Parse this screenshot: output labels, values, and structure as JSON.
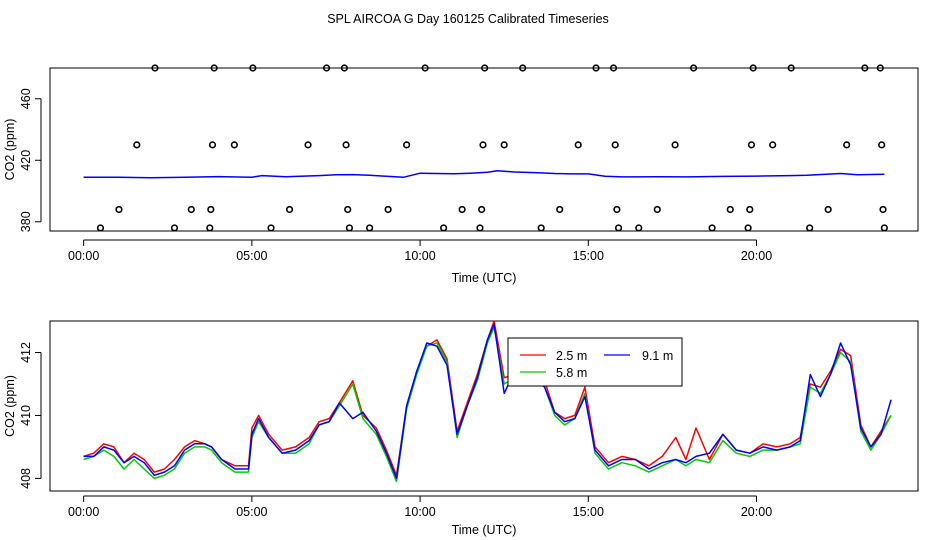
{
  "figure": {
    "title": "SPL AIRCOA G  Day 160125  Calibrated Timeseries"
  },
  "chart_data": [
    {
      "type": "scatter",
      "xlabel": "Time (UTC)",
      "ylabel": "CO2 (ppm)",
      "xlim": [
        -1,
        24.8
      ],
      "ylim": [
        374,
        480
      ],
      "x_ticks": [
        "00:00",
        "05:00",
        "10:00",
        "15:00",
        "20:00"
      ],
      "x_tick_values": [
        0,
        5,
        10,
        15,
        20
      ],
      "y_ticks": [
        "380",
        "420",
        "460"
      ],
      "y_tick_values": [
        380,
        420,
        460
      ],
      "calibration_points": [
        {
          "x": 0.5,
          "y": 376
        },
        {
          "x": 1.05,
          "y": 388
        },
        {
          "x": 1.58,
          "y": 430
        },
        {
          "x": 2.12,
          "y": 480
        },
        {
          "x": 2.7,
          "y": 376
        },
        {
          "x": 3.2,
          "y": 388
        },
        {
          "x": 3.75,
          "y": 376
        },
        {
          "x": 3.78,
          "y": 388
        },
        {
          "x": 3.83,
          "y": 430
        },
        {
          "x": 3.88,
          "y": 480
        },
        {
          "x": 4.48,
          "y": 430
        },
        {
          "x": 5.03,
          "y": 480
        },
        {
          "x": 5.57,
          "y": 376
        },
        {
          "x": 6.12,
          "y": 388
        },
        {
          "x": 6.67,
          "y": 430
        },
        {
          "x": 7.22,
          "y": 480
        },
        {
          "x": 7.75,
          "y": 480
        },
        {
          "x": 7.8,
          "y": 430
        },
        {
          "x": 7.85,
          "y": 388
        },
        {
          "x": 7.9,
          "y": 376
        },
        {
          "x": 8.5,
          "y": 376
        },
        {
          "x": 9.05,
          "y": 388
        },
        {
          "x": 9.6,
          "y": 430
        },
        {
          "x": 10.15,
          "y": 480
        },
        {
          "x": 10.7,
          "y": 376
        },
        {
          "x": 11.25,
          "y": 388
        },
        {
          "x": 11.78,
          "y": 376
        },
        {
          "x": 11.83,
          "y": 388
        },
        {
          "x": 11.87,
          "y": 430
        },
        {
          "x": 11.92,
          "y": 480
        },
        {
          "x": 12.5,
          "y": 430
        },
        {
          "x": 13.05,
          "y": 480
        },
        {
          "x": 13.6,
          "y": 376
        },
        {
          "x": 14.15,
          "y": 388
        },
        {
          "x": 14.7,
          "y": 430
        },
        {
          "x": 15.23,
          "y": 480
        },
        {
          "x": 15.75,
          "y": 480
        },
        {
          "x": 15.8,
          "y": 430
        },
        {
          "x": 15.85,
          "y": 388
        },
        {
          "x": 15.9,
          "y": 376
        },
        {
          "x": 16.5,
          "y": 376
        },
        {
          "x": 17.05,
          "y": 388
        },
        {
          "x": 17.58,
          "y": 430
        },
        {
          "x": 18.13,
          "y": 480
        },
        {
          "x": 18.68,
          "y": 376
        },
        {
          "x": 19.22,
          "y": 388
        },
        {
          "x": 19.75,
          "y": 376
        },
        {
          "x": 19.8,
          "y": 388
        },
        {
          "x": 19.85,
          "y": 430
        },
        {
          "x": 19.9,
          "y": 480
        },
        {
          "x": 20.48,
          "y": 430
        },
        {
          "x": 21.03,
          "y": 480
        },
        {
          "x": 21.58,
          "y": 376
        },
        {
          "x": 22.13,
          "y": 388
        },
        {
          "x": 22.68,
          "y": 430
        },
        {
          "x": 23.22,
          "y": 480
        },
        {
          "x": 23.68,
          "y": 480
        },
        {
          "x": 23.72,
          "y": 430
        },
        {
          "x": 23.76,
          "y": 388
        },
        {
          "x": 23.8,
          "y": 376
        }
      ],
      "series": [
        {
          "color": "#0000ff",
          "x": [
            0,
            1,
            2,
            3,
            4,
            5,
            5.3,
            6,
            7,
            7.5,
            8,
            8.5,
            9,
            9.5,
            10,
            10.5,
            11,
            11.5,
            12,
            12.3,
            12.8,
            13.5,
            14,
            14.5,
            15,
            15.5,
            16,
            17,
            18,
            19,
            20,
            21,
            21.5,
            22,
            22.5,
            23,
            23.8
          ],
          "y": [
            409,
            409,
            408.6,
            409,
            409.4,
            409,
            410,
            409.3,
            410,
            410.6,
            410.7,
            410.3,
            409.6,
            408.9,
            411.6,
            411.4,
            411.2,
            411.6,
            412.2,
            413.2,
            412.4,
            411.9,
            411.4,
            411.1,
            411.1,
            409.6,
            409.2,
            409.3,
            409.2,
            409.5,
            409.7,
            410,
            410.3,
            410.8,
            411.4,
            410.6,
            410.9
          ]
        }
      ]
    },
    {
      "type": "line",
      "xlabel": "Time (UTC)",
      "ylabel": "CO2 (ppm)",
      "xlim": [
        -1,
        24.8
      ],
      "ylim": [
        407.6,
        413
      ],
      "x_ticks": [
        "00:00",
        "05:00",
        "10:00",
        "15:00",
        "20:00"
      ],
      "x_tick_values": [
        0,
        5,
        10,
        15,
        20
      ],
      "y_ticks": [
        "408",
        "410",
        "412"
      ],
      "y_tick_values": [
        408,
        410,
        412
      ],
      "legend_position": "top-center",
      "series": [
        {
          "name": "2.5 m",
          "color": "#ff0000",
          "x": [
            0,
            0.3,
            0.6,
            0.9,
            1.2,
            1.5,
            1.8,
            2.1,
            2.4,
            2.7,
            3.0,
            3.3,
            3.6,
            3.8,
            4.1,
            4.5,
            4.9,
            5.0,
            5.2,
            5.5,
            5.9,
            6.3,
            6.7,
            7.0,
            7.3,
            7.6,
            8.0,
            8.3,
            8.7,
            9.0,
            9.3,
            9.6,
            9.9,
            10.2,
            10.5,
            10.8,
            11.1,
            11.4,
            11.7,
            12.0,
            12.2,
            12.5,
            12.8,
            13.1,
            13.4,
            13.7,
            14.0,
            14.3,
            14.6,
            14.9,
            15.2,
            15.6,
            16.0,
            16.4,
            16.8,
            17.2,
            17.6,
            17.9,
            18.2,
            18.6,
            19.0,
            19.4,
            19.8,
            20.2,
            20.6,
            21.0,
            21.3,
            21.6,
            21.9,
            22.2,
            22.5,
            22.8,
            23.1,
            23.4,
            23.7,
            24.0
          ],
          "y": [
            408.7,
            408.8,
            409.1,
            409.0,
            408.5,
            408.8,
            408.6,
            408.2,
            408.3,
            408.6,
            409.0,
            409.2,
            409.1,
            409.0,
            408.6,
            408.4,
            408.4,
            409.6,
            410.0,
            409.4,
            408.9,
            409.0,
            409.3,
            409.8,
            409.9,
            410.4,
            411.1,
            410.0,
            409.6,
            408.9,
            408.1,
            410.3,
            411.4,
            412.2,
            412.4,
            411.8,
            409.5,
            410.4,
            411.3,
            412.4,
            413.0,
            411.2,
            411.3,
            411.5,
            411.2,
            411.1,
            410.1,
            409.9,
            410.0,
            410.9,
            409.0,
            408.5,
            408.7,
            408.6,
            408.4,
            408.7,
            409.3,
            408.6,
            409.6,
            408.6,
            409.4,
            408.9,
            408.8,
            409.1,
            409.0,
            409.1,
            409.3,
            411.0,
            410.9,
            411.4,
            412.1,
            411.9,
            409.7,
            409.0,
            409.5,
            410.0
          ]
        },
        {
          "name": "5.8 m",
          "color": "#00cc00",
          "x": [
            0,
            0.3,
            0.6,
            0.9,
            1.2,
            1.5,
            1.8,
            2.1,
            2.4,
            2.7,
            3.0,
            3.3,
            3.6,
            3.8,
            4.1,
            4.5,
            4.9,
            5.0,
            5.2,
            5.5,
            5.9,
            6.3,
            6.7,
            7.0,
            7.3,
            7.6,
            8.0,
            8.3,
            8.7,
            9.0,
            9.3,
            9.6,
            9.9,
            10.2,
            10.5,
            10.8,
            11.1,
            11.4,
            11.7,
            12.0,
            12.2,
            12.5,
            12.8,
            13.1,
            13.4,
            13.7,
            14.0,
            14.3,
            14.6,
            14.9,
            15.2,
            15.6,
            16.0,
            16.4,
            16.8,
            17.2,
            17.6,
            17.9,
            18.2,
            18.6,
            19.0,
            19.4,
            19.8,
            20.2,
            20.6,
            21.0,
            21.3,
            21.6,
            21.9,
            22.2,
            22.5,
            22.8,
            23.1,
            23.4,
            23.7,
            24.0
          ],
          "y": [
            408.6,
            408.7,
            408.9,
            408.7,
            408.3,
            408.6,
            408.3,
            408.0,
            408.1,
            408.3,
            408.8,
            409.0,
            409.0,
            408.9,
            408.5,
            408.2,
            408.2,
            409.3,
            409.8,
            409.3,
            408.8,
            408.8,
            409.1,
            409.7,
            409.8,
            410.3,
            411.0,
            409.9,
            409.4,
            408.7,
            407.9,
            410.2,
            411.3,
            412.2,
            412.3,
            411.7,
            409.3,
            410.3,
            411.1,
            412.3,
            412.8,
            411.0,
            411.2,
            411.4,
            411.1,
            410.9,
            410.0,
            409.7,
            409.9,
            410.7,
            408.8,
            408.3,
            408.5,
            408.4,
            408.2,
            408.4,
            408.6,
            408.4,
            408.6,
            408.5,
            409.2,
            408.8,
            408.7,
            408.9,
            408.9,
            409.0,
            409.1,
            410.9,
            410.7,
            411.3,
            412.0,
            411.7,
            409.5,
            408.9,
            409.4,
            410.0
          ]
        },
        {
          "name": "9.1 m",
          "color": "#0000ff",
          "x": [
            0,
            0.3,
            0.6,
            0.9,
            1.2,
            1.5,
            1.8,
            2.1,
            2.4,
            2.7,
            3.0,
            3.3,
            3.6,
            3.8,
            4.1,
            4.5,
            4.9,
            5.0,
            5.2,
            5.5,
            5.9,
            6.3,
            6.7,
            7.0,
            7.3,
            7.6,
            8.0,
            8.3,
            8.7,
            9.0,
            9.3,
            9.6,
            9.9,
            10.2,
            10.5,
            10.8,
            11.1,
            11.4,
            11.7,
            12.0,
            12.2,
            12.5,
            12.8,
            13.1,
            13.4,
            13.7,
            14.0,
            14.3,
            14.6,
            14.9,
            15.2,
            15.6,
            16.0,
            16.4,
            16.8,
            17.2,
            17.6,
            17.9,
            18.2,
            18.6,
            19.0,
            19.4,
            19.8,
            20.2,
            20.6,
            21.0,
            21.3,
            21.6,
            21.9,
            22.2,
            22.5,
            22.8,
            23.1,
            23.4,
            23.7,
            24.0
          ],
          "y": [
            408.7,
            408.7,
            409.0,
            408.9,
            408.5,
            408.7,
            408.5,
            408.1,
            408.2,
            408.4,
            408.9,
            409.1,
            409.1,
            409.0,
            408.6,
            408.3,
            408.3,
            409.4,
            409.9,
            409.3,
            408.8,
            408.9,
            409.2,
            409.7,
            409.8,
            410.4,
            409.9,
            410.1,
            409.5,
            408.8,
            408.0,
            410.3,
            411.4,
            412.3,
            412.2,
            411.6,
            409.4,
            410.3,
            411.2,
            412.4,
            412.9,
            410.7,
            411.4,
            411.2,
            411.2,
            410.9,
            410.1,
            409.8,
            409.9,
            410.6,
            408.9,
            408.4,
            408.6,
            408.6,
            408.3,
            408.5,
            408.6,
            408.5,
            408.7,
            408.8,
            409.4,
            408.9,
            408.8,
            409.0,
            408.9,
            409.0,
            409.2,
            411.3,
            410.6,
            411.3,
            412.3,
            411.6,
            409.6,
            409.0,
            409.4,
            410.5
          ]
        }
      ]
    }
  ]
}
